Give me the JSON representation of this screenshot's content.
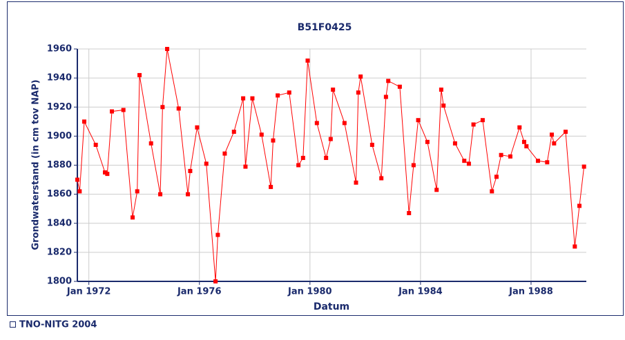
{
  "chart_data": {
    "type": "line",
    "title": "B51F0425",
    "x_label": "Datum",
    "y_label": "Grondwaterstand (in cm tov NAP)",
    "footer": "TNO-NITG 2004",
    "x": [
      "1971-08",
      "1971-09",
      "1971-11",
      "1972-04",
      "1972-08",
      "1972-09",
      "1972-11",
      "1973-04",
      "1973-08",
      "1973-10",
      "1973-11",
      "1974-04",
      "1974-08",
      "1974-09",
      "1974-11",
      "1975-04",
      "1975-08",
      "1975-09",
      "1975-12",
      "1976-04",
      "1976-08",
      "1976-09",
      "1976-12",
      "1977-04",
      "1977-08",
      "1977-09",
      "1977-12",
      "1978-04",
      "1978-08",
      "1978-09",
      "1978-11",
      "1979-04",
      "1979-08",
      "1979-10",
      "1979-12",
      "1980-04",
      "1980-08",
      "1980-10",
      "1980-11",
      "1981-04",
      "1981-09",
      "1981-10",
      "1981-11",
      "1982-04",
      "1982-08",
      "1982-10",
      "1982-11",
      "1983-04",
      "1983-08",
      "1983-10",
      "1983-12",
      "1984-04",
      "1984-08",
      "1984-10",
      "1984-11",
      "1985-04",
      "1985-08",
      "1985-10",
      "1985-12",
      "1986-04",
      "1986-08",
      "1986-10",
      "1986-12",
      "1987-04",
      "1987-08",
      "1987-10",
      "1987-11",
      "1988-04",
      "1988-08",
      "1988-10",
      "1988-11",
      "1989-04",
      "1989-08",
      "1989-10",
      "1989-12"
    ],
    "series": [
      {
        "name": "B51F0425",
        "color": "#ff0000",
        "values": [
          1870,
          1862,
          1910,
          1894,
          1875,
          1874,
          1917,
          1918,
          1844,
          1862,
          1942,
          1895,
          1860,
          1920,
          1960,
          1919,
          1860,
          1876,
          1906,
          1881,
          1800,
          1832,
          1888,
          1903,
          1926,
          1879,
          1926,
          1901,
          1865,
          1897,
          1928,
          1930,
          1880,
          1885,
          1952,
          1909,
          1885,
          1898,
          1932,
          1909,
          1868,
          1930,
          1941,
          1894,
          1871,
          1927,
          1938,
          1934,
          1847,
          1880,
          1911,
          1896,
          1863,
          1932,
          1921,
          1895,
          1883,
          1881,
          1908,
          1911,
          1862,
          1872,
          1887,
          1886,
          1906,
          1896,
          1893,
          1883,
          1882,
          1901,
          1895,
          1903,
          1824,
          1852,
          1879
        ]
      }
    ],
    "xlim": [
      "1971-08",
      "1990-01"
    ],
    "xticks": [
      {
        "value": "1972-01",
        "label": "Jan 1972"
      },
      {
        "value": "1976-01",
        "label": "Jan 1976"
      },
      {
        "value": "1980-01",
        "label": "Jan 1980"
      },
      {
        "value": "1984-01",
        "label": "Jan 1984"
      },
      {
        "value": "1988-01",
        "label": "Jan 1988"
      }
    ],
    "ylim": [
      1800,
      1960
    ],
    "yticks": [
      1800,
      1820,
      1840,
      1860,
      1880,
      1900,
      1920,
      1940,
      1960
    ],
    "grid": true
  }
}
